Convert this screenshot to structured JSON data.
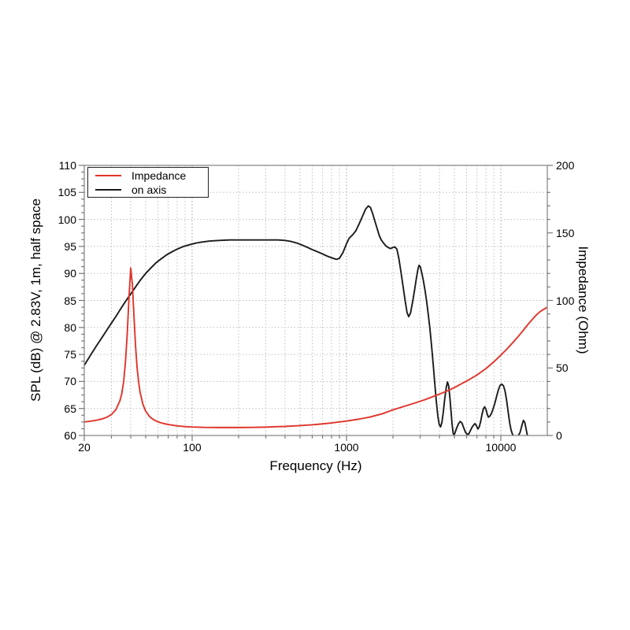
{
  "figure": {
    "background": "#ffffff"
  },
  "colors": {
    "spine": "#8a8a8a",
    "tick": "#777777",
    "grid_minor": "#bdbdbd",
    "grid_major": "#a0a0a0",
    "impedance_curve": "#e0342a",
    "spl_curve": "#1b1b1b",
    "text": "#000000"
  },
  "chart_data": {
    "type": "line",
    "x_axis": {
      "label": "Frequency (Hz)",
      "scale": "log",
      "range": [
        20,
        20000
      ],
      "major_ticks": [
        20,
        100,
        1000,
        10000
      ],
      "tick_labels": [
        "20",
        "100",
        "1000",
        "10000"
      ],
      "minor_gridlines": [
        30,
        40,
        50,
        60,
        70,
        80,
        90,
        200,
        300,
        400,
        500,
        600,
        700,
        800,
        900,
        2000,
        3000,
        4000,
        5000,
        6000,
        7000,
        8000,
        9000
      ]
    },
    "y_axis_left": {
      "label": "SPL (dB) @ 2.83V, 1m, half space",
      "range": [
        60,
        110
      ],
      "major_tick_step": 5,
      "minor_tick_step": 1.25,
      "ticks": [
        60,
        65,
        70,
        75,
        80,
        85,
        90,
        95,
        100,
        105,
        110
      ],
      "tick_labels": [
        "60",
        "65",
        "70",
        "75",
        "80",
        "85",
        "90",
        "95",
        "100",
        "105",
        "110"
      ]
    },
    "y_axis_right": {
      "label": "Impedance (Ohm)",
      "range": [
        0,
        200
      ],
      "major_tick_step": 50,
      "minor_tick_step": 10,
      "ticks": [
        0,
        50,
        100,
        150,
        200
      ],
      "tick_labels": [
        "0",
        "50",
        "100",
        "150",
        "200"
      ]
    },
    "grid": {
      "style": "dotted",
      "horizontal_at": [
        65,
        70,
        75,
        80,
        85,
        90,
        95,
        100,
        105
      ]
    },
    "legend": {
      "position": "top-left",
      "entries": [
        {
          "label": "Impedance",
          "color": "#e0342a"
        },
        {
          "label": "on axis",
          "color": "#1b1b1b"
        }
      ]
    },
    "series": [
      {
        "name": "Impedance",
        "axis": "right",
        "unit": "Ohm",
        "color": "#e0342a",
        "points": [
          [
            20,
            10.0
          ],
          [
            22,
            10.6
          ],
          [
            24,
            11.3
          ],
          [
            26,
            12.2
          ],
          [
            28,
            13.5
          ],
          [
            30,
            15.5
          ],
          [
            32,
            19.0
          ],
          [
            34,
            25.5
          ],
          [
            35,
            31.0
          ],
          [
            36,
            40.0
          ],
          [
            37,
            55.0
          ],
          [
            38,
            76.0
          ],
          [
            39,
            103.0
          ],
          [
            40,
            124.0
          ],
          [
            41,
            112.0
          ],
          [
            42,
            88.0
          ],
          [
            43,
            66.0
          ],
          [
            44,
            50.0
          ],
          [
            45,
            39.5
          ],
          [
            46,
            32.0
          ],
          [
            48,
            23.0
          ],
          [
            50,
            18.0
          ],
          [
            53,
            14.0
          ],
          [
            56,
            11.8
          ],
          [
            60,
            10.1
          ],
          [
            65,
            8.9
          ],
          [
            70,
            8.1
          ],
          [
            80,
            7.1
          ],
          [
            90,
            6.6
          ],
          [
            100,
            6.3
          ],
          [
            120,
            6.0
          ],
          [
            150,
            5.9
          ],
          [
            200,
            5.9
          ],
          [
            250,
            6.0
          ],
          [
            300,
            6.2
          ],
          [
            350,
            6.5
          ],
          [
            400,
            6.7
          ],
          [
            500,
            7.3
          ],
          [
            600,
            7.9
          ],
          [
            700,
            8.6
          ],
          [
            800,
            9.3
          ],
          [
            900,
            10.0
          ],
          [
            1000,
            10.7
          ],
          [
            1200,
            12.1
          ],
          [
            1400,
            13.5
          ],
          [
            1700,
            16.0
          ],
          [
            2000,
            19.0
          ],
          [
            2400,
            21.8
          ],
          [
            2800,
            24.2
          ],
          [
            3200,
            26.4
          ],
          [
            3600,
            28.6
          ],
          [
            4000,
            30.6
          ],
          [
            4500,
            33.0
          ],
          [
            5000,
            35.5
          ],
          [
            5500,
            38.0
          ],
          [
            6000,
            40.3
          ],
          [
            7000,
            44.8
          ],
          [
            8000,
            49.5
          ],
          [
            9000,
            54.5
          ],
          [
            10000,
            59.5
          ],
          [
            11000,
            64.3
          ],
          [
            12000,
            69.0
          ],
          [
            13000,
            73.5
          ],
          [
            14000,
            78.0
          ],
          [
            15000,
            82.3
          ],
          [
            16000,
            86.0
          ],
          [
            17000,
            89.3
          ],
          [
            18000,
            91.8
          ],
          [
            19000,
            93.5
          ],
          [
            20000,
            95.0
          ]
        ]
      },
      {
        "name": "on axis",
        "axis": "left",
        "unit": "dB",
        "color": "#1b1b1b",
        "points": [
          [
            20,
            73.0
          ],
          [
            22,
            74.9
          ],
          [
            24,
            76.6
          ],
          [
            26,
            78.1
          ],
          [
            28,
            79.5
          ],
          [
            30,
            80.8
          ],
          [
            32,
            82.0
          ],
          [
            34,
            83.2
          ],
          [
            36,
            84.3
          ],
          [
            38,
            85.3
          ],
          [
            40,
            86.2
          ],
          [
            43,
            87.5
          ],
          [
            46,
            88.7
          ],
          [
            50,
            90.0
          ],
          [
            54,
            91.0
          ],
          [
            58,
            91.9
          ],
          [
            63,
            92.7
          ],
          [
            68,
            93.4
          ],
          [
            74,
            94.0
          ],
          [
            80,
            94.5
          ],
          [
            88,
            95.0
          ],
          [
            96,
            95.3
          ],
          [
            105,
            95.6
          ],
          [
            115,
            95.8
          ],
          [
            130,
            96.0
          ],
          [
            150,
            96.1
          ],
          [
            175,
            96.2
          ],
          [
            200,
            96.2
          ],
          [
            240,
            96.2
          ],
          [
            280,
            96.2
          ],
          [
            320,
            96.2
          ],
          [
            360,
            96.2
          ],
          [
            400,
            96.1
          ],
          [
            440,
            95.9
          ],
          [
            480,
            95.6
          ],
          [
            520,
            95.2
          ],
          [
            560,
            94.8
          ],
          [
            600,
            94.4
          ],
          [
            650,
            94.0
          ],
          [
            700,
            93.6
          ],
          [
            750,
            93.2
          ],
          [
            800,
            92.9
          ],
          [
            860,
            92.6
          ],
          [
            900,
            92.8
          ],
          [
            950,
            93.9
          ],
          [
            1000,
            95.5
          ],
          [
            1040,
            96.5
          ],
          [
            1100,
            97.2
          ],
          [
            1150,
            97.9
          ],
          [
            1200,
            99.0
          ],
          [
            1270,
            100.6
          ],
          [
            1330,
            101.9
          ],
          [
            1385,
            102.5
          ],
          [
            1430,
            102.2
          ],
          [
            1480,
            101.0
          ],
          [
            1530,
            99.6
          ],
          [
            1580,
            98.3
          ],
          [
            1630,
            97.0
          ],
          [
            1680,
            96.2
          ],
          [
            1740,
            95.6
          ],
          [
            1800,
            95.1
          ],
          [
            1860,
            94.8
          ],
          [
            1930,
            94.6
          ],
          [
            2000,
            94.8
          ],
          [
            2060,
            94.9
          ],
          [
            2120,
            94.5
          ],
          [
            2180,
            92.9
          ],
          [
            2250,
            90.4
          ],
          [
            2320,
            87.8
          ],
          [
            2400,
            84.9
          ],
          [
            2470,
            82.7
          ],
          [
            2530,
            82.0
          ],
          [
            2600,
            82.7
          ],
          [
            2680,
            84.7
          ],
          [
            2760,
            86.9
          ],
          [
            2840,
            89.2
          ],
          [
            2900,
            90.7
          ],
          [
            2950,
            91.5
          ],
          [
            3010,
            91.2
          ],
          [
            3080,
            90.0
          ],
          [
            3150,
            88.6
          ],
          [
            3230,
            86.8
          ],
          [
            3310,
            84.7
          ],
          [
            3390,
            82.3
          ],
          [
            3470,
            79.8
          ],
          [
            3550,
            76.9
          ],
          [
            3640,
            73.4
          ],
          [
            3730,
            69.7
          ],
          [
            3820,
            66.3
          ],
          [
            3910,
            63.5
          ],
          [
            3990,
            62.0
          ],
          [
            4070,
            61.6
          ],
          [
            4150,
            62.4
          ],
          [
            4240,
            64.4
          ],
          [
            4330,
            66.8
          ],
          [
            4430,
            68.9
          ],
          [
            4510,
            69.9
          ],
          [
            4590,
            69.2
          ],
          [
            4670,
            67.2
          ],
          [
            4750,
            64.7
          ],
          [
            4830,
            62.1
          ],
          [
            4910,
            60.4
          ],
          [
            4970,
            60.1
          ],
          [
            5050,
            60.5
          ],
          [
            5160,
            61.3
          ],
          [
            5300,
            62.1
          ],
          [
            5450,
            62.6
          ],
          [
            5600,
            62.3
          ],
          [
            5750,
            61.4
          ],
          [
            5900,
            60.6
          ],
          [
            6050,
            60.2
          ],
          [
            6200,
            60.3
          ],
          [
            6350,
            60.9
          ],
          [
            6500,
            61.5
          ],
          [
            6650,
            61.9
          ],
          [
            6800,
            62.2
          ],
          [
            6950,
            61.8
          ],
          [
            7100,
            61.2
          ],
          [
            7250,
            61.6
          ],
          [
            7400,
            62.6
          ],
          [
            7550,
            63.9
          ],
          [
            7700,
            64.9
          ],
          [
            7850,
            65.3
          ],
          [
            8000,
            64.9
          ],
          [
            8150,
            64.0
          ],
          [
            8300,
            63.4
          ],
          [
            8500,
            63.6
          ],
          [
            8700,
            64.1
          ],
          [
            8900,
            64.9
          ],
          [
            9150,
            66.0
          ],
          [
            9400,
            67.3
          ],
          [
            9650,
            68.5
          ],
          [
            9900,
            69.3
          ],
          [
            10150,
            69.5
          ],
          [
            10400,
            69.2
          ],
          [
            10650,
            68.2
          ],
          [
            10900,
            66.5
          ],
          [
            11150,
            64.4
          ],
          [
            11400,
            62.4
          ],
          [
            11650,
            61.0
          ],
          [
            11900,
            60.2
          ],
          [
            12150,
            59.8
          ],
          [
            12500,
            59.7
          ],
          [
            12900,
            59.9
          ],
          [
            13300,
            60.5
          ],
          [
            13700,
            61.9
          ],
          [
            14000,
            62.8
          ],
          [
            14300,
            62.4
          ],
          [
            14600,
            61.1
          ],
          [
            14900,
            59.8
          ],
          [
            15200,
            57.5
          ]
        ]
      }
    ]
  }
}
